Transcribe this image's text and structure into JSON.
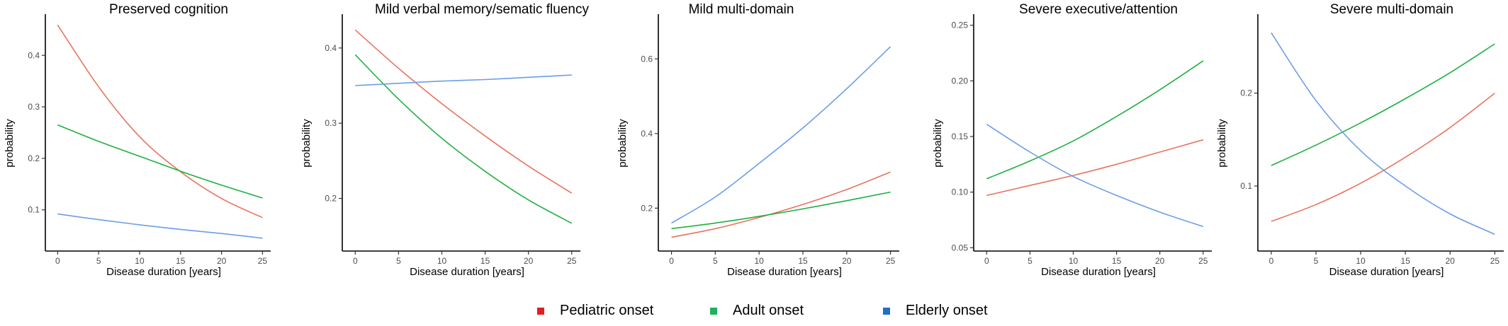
{
  "colors": {
    "pediatric": "#e8735f",
    "adult": "#1fb040",
    "elderly": "#6b9ee6",
    "legend_pediatric": "#e02020",
    "legend_adult": "#20b060",
    "legend_elderly": "#2070c0"
  },
  "legend": {
    "items": [
      {
        "key": "pediatric",
        "label": "Pediatric onset"
      },
      {
        "key": "adult",
        "label": "Adult onset"
      },
      {
        "key": "elderly",
        "label": "Elderly onset"
      }
    ]
  },
  "chart_data": [
    {
      "type": "line",
      "title": "Preserved cognition",
      "xlabel": "Disease duration [years]",
      "ylabel": "probability",
      "xlim": [
        -1.5,
        26
      ],
      "ylim": [
        0.02,
        0.48
      ],
      "xticks": [
        0,
        5,
        10,
        15,
        20,
        25
      ],
      "yticks": [
        0.1,
        0.2,
        0.3,
        0.4
      ],
      "ytick_labels": [
        "0.1",
        "0.2",
        "0.3",
        "0.4"
      ],
      "grid": false,
      "x": [
        0,
        5,
        10,
        15,
        20,
        25
      ],
      "series": [
        {
          "name": "Pediatric onset",
          "key": "pediatric",
          "values": [
            0.459,
            0.339,
            0.242,
            0.174,
            0.122,
            0.085
          ]
        },
        {
          "name": "Adult onset",
          "key": "adult",
          "values": [
            0.265,
            0.233,
            0.204,
            0.175,
            0.148,
            0.123
          ]
        },
        {
          "name": "Elderly onset",
          "key": "elderly",
          "values": [
            0.092,
            0.081,
            0.071,
            0.062,
            0.054,
            0.045
          ]
        }
      ]
    },
    {
      "type": "line",
      "title": "Mild verbal memory/sematic fluency",
      "xlabel": "Disease duration [years]",
      "ylabel": "probability",
      "xlim": [
        -1.5,
        26
      ],
      "ylim": [
        0.13,
        0.445
      ],
      "xticks": [
        0,
        5,
        10,
        15,
        20,
        25
      ],
      "yticks": [
        0.2,
        0.3,
        0.4
      ],
      "ytick_labels": [
        "0.2",
        "0.3",
        "0.4"
      ],
      "grid": false,
      "x": [
        0,
        5,
        10,
        15,
        20,
        25
      ],
      "series": [
        {
          "name": "Pediatric onset",
          "key": "pediatric",
          "values": [
            0.424,
            0.373,
            0.326,
            0.283,
            0.243,
            0.207
          ]
        },
        {
          "name": "Adult onset",
          "key": "adult",
          "values": [
            0.391,
            0.332,
            0.28,
            0.236,
            0.198,
            0.167
          ]
        },
        {
          "name": "Elderly onset",
          "key": "elderly",
          "values": [
            0.35,
            0.353,
            0.356,
            0.358,
            0.361,
            0.364
          ]
        }
      ]
    },
    {
      "type": "line",
      "title": "Mild multi-domain",
      "xlabel": "Disease duration [years]",
      "ylabel": "probability",
      "xlim": [
        -1.5,
        26
      ],
      "ylim": [
        0.085,
        0.72
      ],
      "xticks": [
        0,
        5,
        10,
        15,
        20,
        25
      ],
      "yticks": [
        0.2,
        0.4,
        0.6
      ],
      "ytick_labels": [
        "0.2",
        "0.4",
        "0.6"
      ],
      "grid": false,
      "x": [
        0,
        5,
        10,
        15,
        20,
        25
      ],
      "series": [
        {
          "name": "Pediatric onset",
          "key": "pediatric",
          "values": [
            0.122,
            0.145,
            0.175,
            0.21,
            0.25,
            0.297
          ]
        },
        {
          "name": "Adult onset",
          "key": "adult",
          "values": [
            0.145,
            0.16,
            0.178,
            0.198,
            0.22,
            0.243
          ]
        },
        {
          "name": "Elderly onset",
          "key": "elderly",
          "values": [
            0.16,
            0.23,
            0.32,
            0.415,
            0.52,
            0.633
          ]
        }
      ]
    },
    {
      "type": "line",
      "title": "Severe executive/attention",
      "xlabel": "Disease duration [years]",
      "ylabel": "probability",
      "xlim": [
        -1.5,
        26
      ],
      "ylim": [
        0.047,
        0.26
      ],
      "xticks": [
        0,
        5,
        10,
        15,
        20,
        25
      ],
      "yticks": [
        0.05,
        0.1,
        0.15,
        0.2,
        0.25
      ],
      "ytick_labels": [
        "0.05",
        "0.10",
        "0.15",
        "0.20",
        "0.25"
      ],
      "grid": false,
      "x": [
        0,
        5,
        10,
        15,
        20,
        25
      ],
      "series": [
        {
          "name": "Pediatric onset",
          "key": "pediatric",
          "values": [
            0.097,
            0.106,
            0.115,
            0.125,
            0.136,
            0.147
          ]
        },
        {
          "name": "Adult onset",
          "key": "adult",
          "values": [
            0.112,
            0.128,
            0.146,
            0.168,
            0.192,
            0.218
          ]
        },
        {
          "name": "Elderly onset",
          "key": "elderly",
          "values": [
            0.161,
            0.136,
            0.114,
            0.097,
            0.082,
            0.069
          ]
        }
      ]
    },
    {
      "type": "line",
      "title": "Severe multi-domain",
      "xlabel": "Disease duration [years]",
      "ylabel": "probability",
      "xlim": [
        -1.5,
        26
      ],
      "ylim": [
        0.03,
        0.285
      ],
      "xticks": [
        0,
        5,
        10,
        15,
        20,
        25
      ],
      "yticks": [
        0.1,
        0.2
      ],
      "ytick_labels": [
        "0.1",
        "0.2"
      ],
      "grid": false,
      "x": [
        0,
        5,
        10,
        15,
        20,
        25
      ],
      "series": [
        {
          "name": "Pediatric onset",
          "key": "pediatric",
          "values": [
            0.062,
            0.08,
            0.103,
            0.131,
            0.163,
            0.2
          ]
        },
        {
          "name": "Adult onset",
          "key": "adult",
          "values": [
            0.122,
            0.144,
            0.168,
            0.194,
            0.222,
            0.253
          ]
        },
        {
          "name": "Elderly onset",
          "key": "elderly",
          "values": [
            0.265,
            0.192,
            0.138,
            0.1,
            0.07,
            0.048
          ]
        }
      ]
    }
  ]
}
